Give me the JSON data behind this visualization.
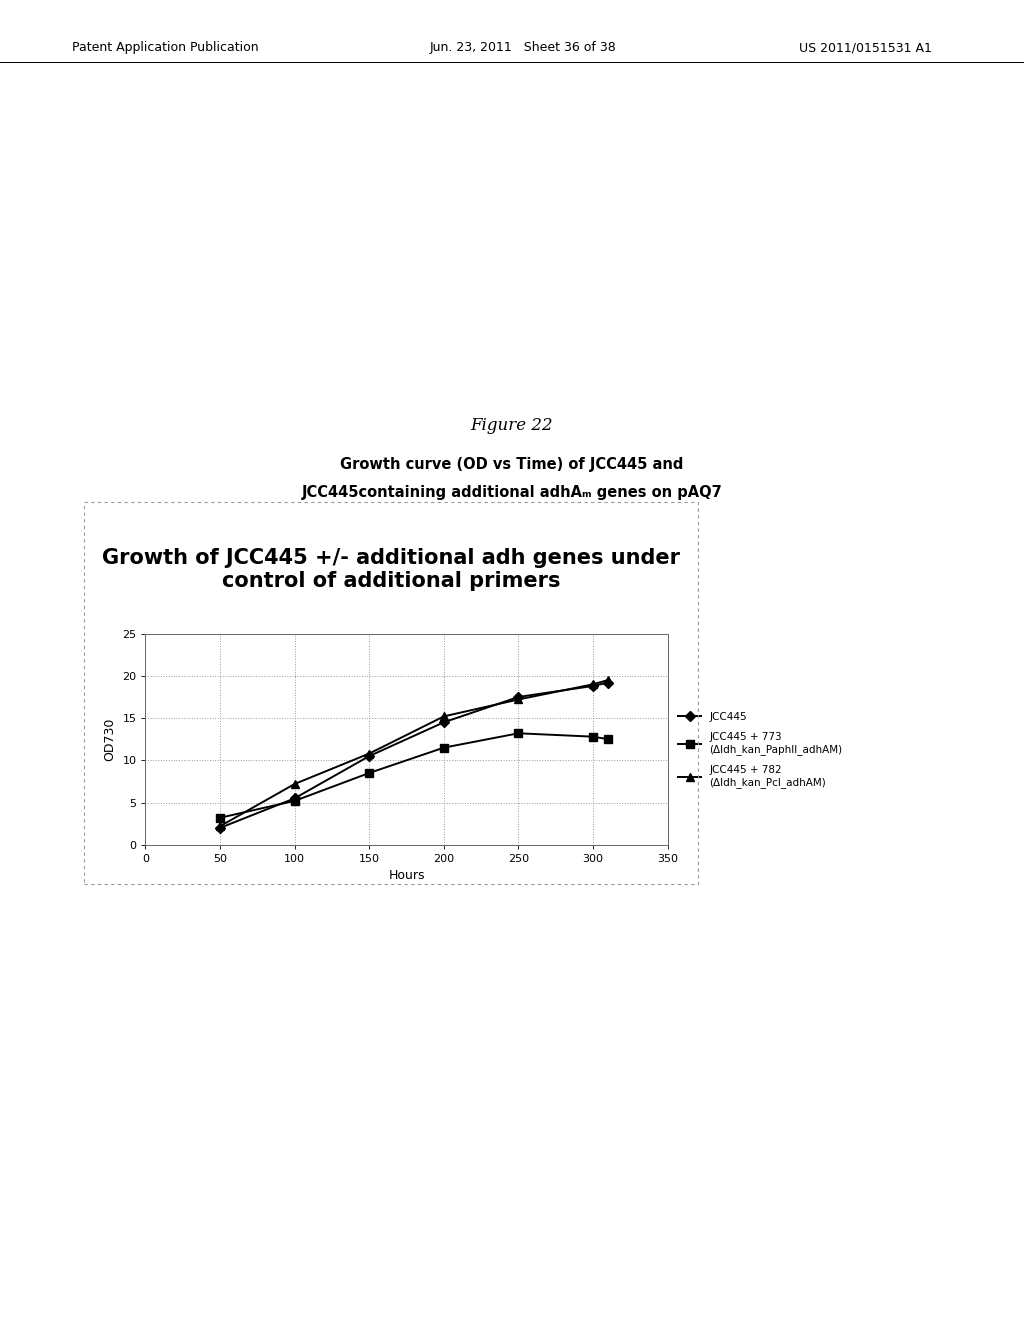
{
  "figure_label": "Figure 22",
  "subtitle_line1": "Growth curve (OD vs Time) of JCC445 and",
  "subtitle_line2": "JCC445containing additional adhAₘ genes on pAQ7",
  "chart_title_line1": "Growth of JCC445 +/- additional adh genes under",
  "chart_title_line2": "control of additional primers",
  "xlabel": "Hours",
  "ylabel": "OD730",
  "xlim": [
    0,
    350
  ],
  "ylim": [
    0,
    25
  ],
  "xticks": [
    0,
    50,
    100,
    150,
    200,
    250,
    300,
    350
  ],
  "yticks": [
    0,
    5,
    10,
    15,
    20,
    25
  ],
  "series": [
    {
      "label": "JCC445",
      "x": [
        50,
        100,
        150,
        200,
        250,
        300,
        310
      ],
      "y": [
        2.0,
        5.5,
        10.5,
        14.5,
        17.5,
        18.8,
        19.2
      ],
      "marker": "D",
      "color": "#000000",
      "linestyle": "-",
      "markersize": 5
    },
    {
      "label": "JCC445 + 773\n(Δldh_kan_PaphII_adhAM)",
      "x": [
        50,
        100,
        150,
        200,
        250,
        300,
        310
      ],
      "y": [
        3.2,
        5.2,
        8.5,
        11.5,
        13.2,
        12.8,
        12.5
      ],
      "marker": "s",
      "color": "#000000",
      "linestyle": "-",
      "markersize": 6
    },
    {
      "label": "JCC445 + 782\n(Δldh_kan_Pcl_adhAM)",
      "x": [
        50,
        100,
        150,
        200,
        250,
        300,
        310
      ],
      "y": [
        2.2,
        7.2,
        10.8,
        15.2,
        17.2,
        19.0,
        19.5
      ],
      "marker": "^",
      "color": "#000000",
      "linestyle": "-",
      "markersize": 6
    }
  ],
  "grid_color": "#999999",
  "grid_linestyle": ":",
  "grid_linewidth": 0.7,
  "background_color": "#ffffff",
  "chart_background": "#ffffff",
  "border_color": "#666666",
  "outer_border_color": "#999999",
  "header_left": "Patent Application Publication",
  "header_center": "Jun. 23, 2011   Sheet 36 of 38",
  "header_right": "US 2011/0151531 A1"
}
